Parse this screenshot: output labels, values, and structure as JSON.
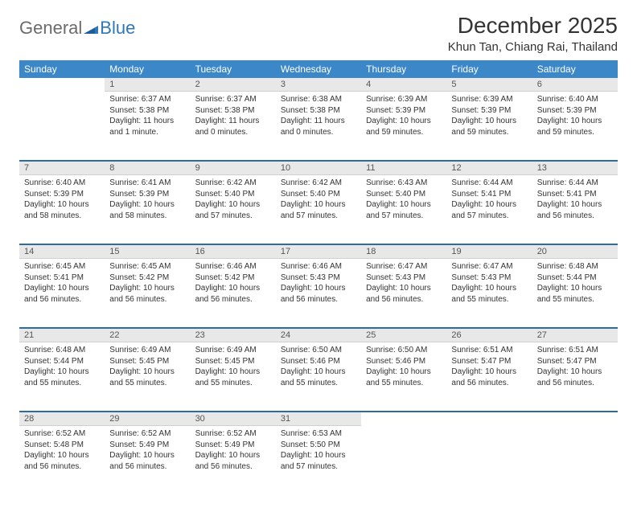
{
  "logo": {
    "general": "General",
    "blue": "Blue"
  },
  "title": "December 2025",
  "location": "Khun Tan, Chiang Rai, Thailand",
  "colors": {
    "header_bg": "#3b87c8",
    "header_text": "#ffffff",
    "daynum_bg": "#e8e8e8",
    "week_rule": "#2e6da4",
    "logo_gray": "#6b6b6b",
    "logo_blue": "#2e77b8",
    "body_text": "#333333",
    "page_bg": "#ffffff"
  },
  "typography": {
    "title_fontsize": 28,
    "location_fontsize": 15,
    "dayheader_fontsize": 12,
    "daynum_fontsize": 11,
    "cell_fontsize": 10,
    "logo_fontsize": 22
  },
  "day_headers": [
    "Sunday",
    "Monday",
    "Tuesday",
    "Wednesday",
    "Thursday",
    "Friday",
    "Saturday"
  ],
  "weeks": [
    {
      "days": [
        {
          "n": "",
          "sunrise": "",
          "sunset": "",
          "daylight": ""
        },
        {
          "n": "1",
          "sunrise": "Sunrise: 6:37 AM",
          "sunset": "Sunset: 5:38 PM",
          "daylight": "Daylight: 11 hours and 1 minute."
        },
        {
          "n": "2",
          "sunrise": "Sunrise: 6:37 AM",
          "sunset": "Sunset: 5:38 PM",
          "daylight": "Daylight: 11 hours and 0 minutes."
        },
        {
          "n": "3",
          "sunrise": "Sunrise: 6:38 AM",
          "sunset": "Sunset: 5:38 PM",
          "daylight": "Daylight: 11 hours and 0 minutes."
        },
        {
          "n": "4",
          "sunrise": "Sunrise: 6:39 AM",
          "sunset": "Sunset: 5:39 PM",
          "daylight": "Daylight: 10 hours and 59 minutes."
        },
        {
          "n": "5",
          "sunrise": "Sunrise: 6:39 AM",
          "sunset": "Sunset: 5:39 PM",
          "daylight": "Daylight: 10 hours and 59 minutes."
        },
        {
          "n": "6",
          "sunrise": "Sunrise: 6:40 AM",
          "sunset": "Sunset: 5:39 PM",
          "daylight": "Daylight: 10 hours and 59 minutes."
        }
      ]
    },
    {
      "days": [
        {
          "n": "7",
          "sunrise": "Sunrise: 6:40 AM",
          "sunset": "Sunset: 5:39 PM",
          "daylight": "Daylight: 10 hours and 58 minutes."
        },
        {
          "n": "8",
          "sunrise": "Sunrise: 6:41 AM",
          "sunset": "Sunset: 5:39 PM",
          "daylight": "Daylight: 10 hours and 58 minutes."
        },
        {
          "n": "9",
          "sunrise": "Sunrise: 6:42 AM",
          "sunset": "Sunset: 5:40 PM",
          "daylight": "Daylight: 10 hours and 57 minutes."
        },
        {
          "n": "10",
          "sunrise": "Sunrise: 6:42 AM",
          "sunset": "Sunset: 5:40 PM",
          "daylight": "Daylight: 10 hours and 57 minutes."
        },
        {
          "n": "11",
          "sunrise": "Sunrise: 6:43 AM",
          "sunset": "Sunset: 5:40 PM",
          "daylight": "Daylight: 10 hours and 57 minutes."
        },
        {
          "n": "12",
          "sunrise": "Sunrise: 6:44 AM",
          "sunset": "Sunset: 5:41 PM",
          "daylight": "Daylight: 10 hours and 57 minutes."
        },
        {
          "n": "13",
          "sunrise": "Sunrise: 6:44 AM",
          "sunset": "Sunset: 5:41 PM",
          "daylight": "Daylight: 10 hours and 56 minutes."
        }
      ]
    },
    {
      "days": [
        {
          "n": "14",
          "sunrise": "Sunrise: 6:45 AM",
          "sunset": "Sunset: 5:41 PM",
          "daylight": "Daylight: 10 hours and 56 minutes."
        },
        {
          "n": "15",
          "sunrise": "Sunrise: 6:45 AM",
          "sunset": "Sunset: 5:42 PM",
          "daylight": "Daylight: 10 hours and 56 minutes."
        },
        {
          "n": "16",
          "sunrise": "Sunrise: 6:46 AM",
          "sunset": "Sunset: 5:42 PM",
          "daylight": "Daylight: 10 hours and 56 minutes."
        },
        {
          "n": "17",
          "sunrise": "Sunrise: 6:46 AM",
          "sunset": "Sunset: 5:43 PM",
          "daylight": "Daylight: 10 hours and 56 minutes."
        },
        {
          "n": "18",
          "sunrise": "Sunrise: 6:47 AM",
          "sunset": "Sunset: 5:43 PM",
          "daylight": "Daylight: 10 hours and 56 minutes."
        },
        {
          "n": "19",
          "sunrise": "Sunrise: 6:47 AM",
          "sunset": "Sunset: 5:43 PM",
          "daylight": "Daylight: 10 hours and 55 minutes."
        },
        {
          "n": "20",
          "sunrise": "Sunrise: 6:48 AM",
          "sunset": "Sunset: 5:44 PM",
          "daylight": "Daylight: 10 hours and 55 minutes."
        }
      ]
    },
    {
      "days": [
        {
          "n": "21",
          "sunrise": "Sunrise: 6:48 AM",
          "sunset": "Sunset: 5:44 PM",
          "daylight": "Daylight: 10 hours and 55 minutes."
        },
        {
          "n": "22",
          "sunrise": "Sunrise: 6:49 AM",
          "sunset": "Sunset: 5:45 PM",
          "daylight": "Daylight: 10 hours and 55 minutes."
        },
        {
          "n": "23",
          "sunrise": "Sunrise: 6:49 AM",
          "sunset": "Sunset: 5:45 PM",
          "daylight": "Daylight: 10 hours and 55 minutes."
        },
        {
          "n": "24",
          "sunrise": "Sunrise: 6:50 AM",
          "sunset": "Sunset: 5:46 PM",
          "daylight": "Daylight: 10 hours and 55 minutes."
        },
        {
          "n": "25",
          "sunrise": "Sunrise: 6:50 AM",
          "sunset": "Sunset: 5:46 PM",
          "daylight": "Daylight: 10 hours and 55 minutes."
        },
        {
          "n": "26",
          "sunrise": "Sunrise: 6:51 AM",
          "sunset": "Sunset: 5:47 PM",
          "daylight": "Daylight: 10 hours and 56 minutes."
        },
        {
          "n": "27",
          "sunrise": "Sunrise: 6:51 AM",
          "sunset": "Sunset: 5:47 PM",
          "daylight": "Daylight: 10 hours and 56 minutes."
        }
      ]
    },
    {
      "days": [
        {
          "n": "28",
          "sunrise": "Sunrise: 6:52 AM",
          "sunset": "Sunset: 5:48 PM",
          "daylight": "Daylight: 10 hours and 56 minutes."
        },
        {
          "n": "29",
          "sunrise": "Sunrise: 6:52 AM",
          "sunset": "Sunset: 5:49 PM",
          "daylight": "Daylight: 10 hours and 56 minutes."
        },
        {
          "n": "30",
          "sunrise": "Sunrise: 6:52 AM",
          "sunset": "Sunset: 5:49 PM",
          "daylight": "Daylight: 10 hours and 56 minutes."
        },
        {
          "n": "31",
          "sunrise": "Sunrise: 6:53 AM",
          "sunset": "Sunset: 5:50 PM",
          "daylight": "Daylight: 10 hours and 57 minutes."
        },
        {
          "n": "",
          "sunrise": "",
          "sunset": "",
          "daylight": ""
        },
        {
          "n": "",
          "sunrise": "",
          "sunset": "",
          "daylight": ""
        },
        {
          "n": "",
          "sunrise": "",
          "sunset": "",
          "daylight": ""
        }
      ]
    }
  ]
}
